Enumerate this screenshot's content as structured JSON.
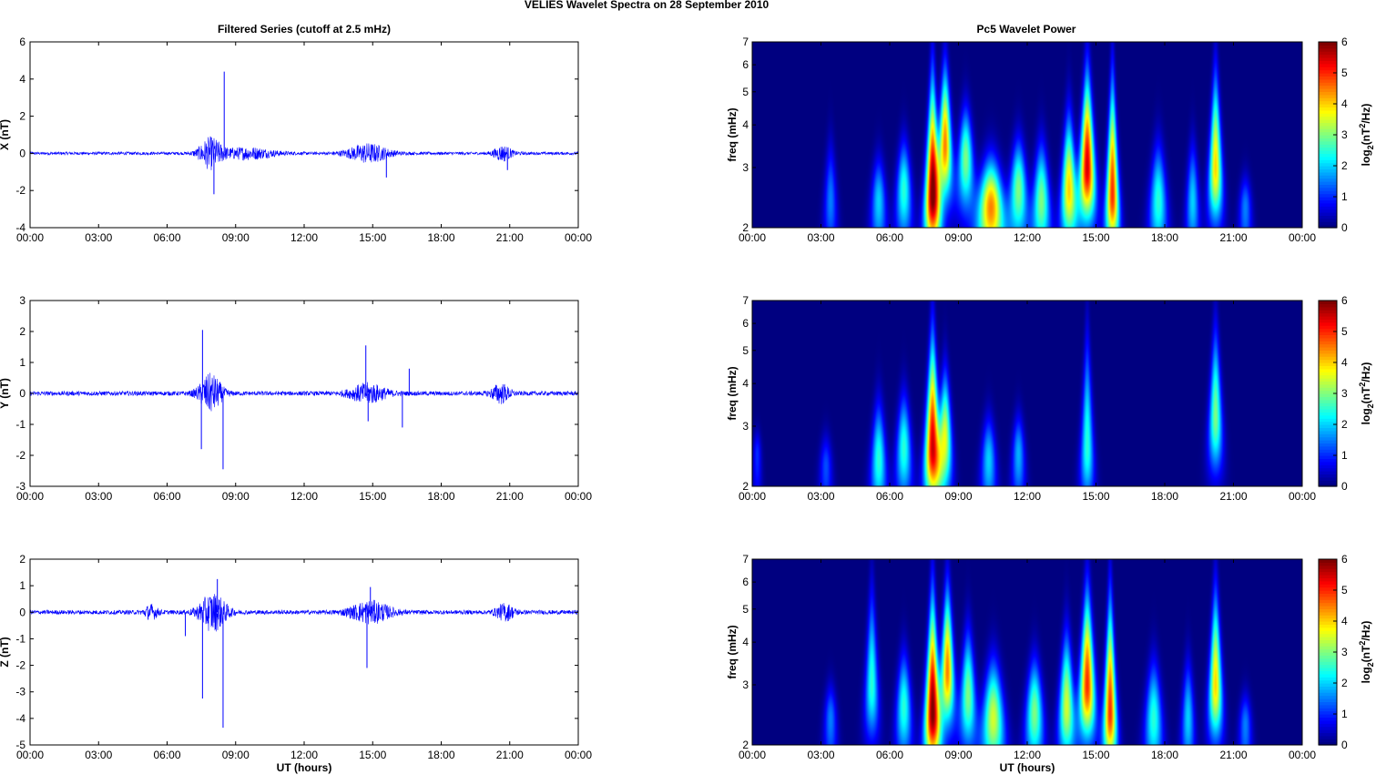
{
  "title": "VELIES Wavelet Spectra on 28 September 2010",
  "left_title": "Filtered Series (cutoff at 2.5 mHz)",
  "right_title": "Pc5 Wavelet Power",
  "xlabel": "UT (hours)",
  "freq_label": "freq (mHz)",
  "cbar_label": "log2(nT2/Hz)",
  "colors": {
    "series": "#0000ff",
    "axis": "#000000"
  },
  "chart_data": [
    {
      "type": "line",
      "title": "Filtered Series (cutoff at 2.5 mHz)",
      "ylabel": "X (nT)",
      "xlabel": "",
      "x_ticks": [
        "00:00",
        "03:00",
        "06:00",
        "09:00",
        "12:00",
        "15:00",
        "18:00",
        "21:00",
        "00:00"
      ],
      "xlim": [
        0,
        24
      ],
      "ylim": [
        -4,
        6
      ],
      "y_ticks": [
        -4,
        -2,
        0,
        2,
        4,
        6
      ],
      "baseline_amplitude": 0.08,
      "bursts": [
        {
          "center": 7.9,
          "width": 0.5,
          "amp": 0.8
        },
        {
          "center": 9.5,
          "width": 1.2,
          "amp": 0.3
        },
        {
          "center": 14.8,
          "width": 0.9,
          "amp": 0.5
        },
        {
          "center": 20.7,
          "width": 0.4,
          "amp": 0.4
        }
      ],
      "spikes": [
        [
          8.5,
          4.4
        ],
        [
          8.05,
          -2.2
        ],
        [
          15.6,
          -1.3
        ],
        [
          20.9,
          -0.9
        ]
      ]
    },
    {
      "type": "line",
      "title": "",
      "ylabel": "Y (nT)",
      "xlabel": "",
      "x_ticks": [
        "00:00",
        "03:00",
        "06:00",
        "09:00",
        "12:00",
        "15:00",
        "18:00",
        "21:00",
        "00:00"
      ],
      "xlim": [
        0,
        24
      ],
      "ylim": [
        -3,
        3
      ],
      "y_ticks": [
        -3,
        -2,
        -1,
        0,
        1,
        2,
        3
      ],
      "baseline_amplitude": 0.07,
      "bursts": [
        {
          "center": 7.9,
          "width": 0.5,
          "amp": 0.6
        },
        {
          "center": 14.8,
          "width": 0.8,
          "amp": 0.3
        },
        {
          "center": 20.6,
          "width": 0.4,
          "amp": 0.3
        }
      ],
      "spikes": [
        [
          7.55,
          2.05
        ],
        [
          8.45,
          -2.45
        ],
        [
          7.5,
          -1.8
        ],
        [
          14.7,
          1.55
        ],
        [
          16.3,
          -1.1
        ],
        [
          16.6,
          0.8
        ],
        [
          14.8,
          -0.9
        ]
      ]
    },
    {
      "type": "line",
      "title": "",
      "ylabel": "Z (nT)",
      "xlabel": "UT (hours)",
      "x_ticks": [
        "00:00",
        "03:00",
        "06:00",
        "09:00",
        "12:00",
        "15:00",
        "18:00",
        "21:00",
        "00:00"
      ],
      "xlim": [
        0,
        24
      ],
      "ylim": [
        -5,
        2
      ],
      "y_ticks": [
        -5,
        -4,
        -3,
        -2,
        -1,
        0,
        1,
        2
      ],
      "baseline_amplitude": 0.08,
      "bursts": [
        {
          "center": 8.0,
          "width": 0.6,
          "amp": 0.7
        },
        {
          "center": 5.3,
          "width": 0.3,
          "amp": 0.25
        },
        {
          "center": 14.9,
          "width": 0.9,
          "amp": 0.4
        },
        {
          "center": 20.8,
          "width": 0.4,
          "amp": 0.3
        }
      ],
      "spikes": [
        [
          8.45,
          -4.35
        ],
        [
          7.55,
          -3.25
        ],
        [
          14.75,
          -2.1
        ],
        [
          6.8,
          -0.9
        ],
        [
          8.2,
          1.25
        ],
        [
          14.9,
          0.95
        ]
      ]
    },
    {
      "type": "heatmap",
      "title": "Pc5 Wavelet Power",
      "ylabel": "freq (mHz)",
      "xlabel": "",
      "x_ticks": [
        "00:00",
        "03:00",
        "06:00",
        "09:00",
        "12:00",
        "15:00",
        "18:00",
        "21:00",
        "00:00"
      ],
      "xlim": [
        0,
        24
      ],
      "ylim": [
        2,
        7
      ],
      "y_scale": "log",
      "y_ticks": [
        2,
        3,
        4,
        5,
        6,
        7
      ],
      "colorbar": {
        "label": "log2(nT2/Hz)",
        "range": [
          0,
          6
        ],
        "ticks": [
          0,
          1,
          2,
          3,
          4,
          5,
          6
        ],
        "colormap": "jet"
      },
      "blobs": [
        {
          "t": 7.85,
          "f": 2.5,
          "power": 6,
          "width": 0.35,
          "top": 7
        },
        {
          "t": 8.4,
          "f": 3.5,
          "power": 4.5,
          "width": 0.3,
          "top": 7
        },
        {
          "t": 9.3,
          "f": 3.2,
          "power": 3,
          "width": 0.35,
          "top": 5
        },
        {
          "t": 10.4,
          "f": 2.3,
          "power": 4.5,
          "width": 0.6,
          "top": 3.5
        },
        {
          "t": 11.6,
          "f": 2.6,
          "power": 3,
          "width": 0.4,
          "top": 4
        },
        {
          "t": 12.6,
          "f": 2.4,
          "power": 3,
          "width": 0.4,
          "top": 4
        },
        {
          "t": 13.8,
          "f": 2.6,
          "power": 4,
          "width": 0.35,
          "top": 5
        },
        {
          "t": 14.6,
          "f": 3.0,
          "power": 5.5,
          "width": 0.35,
          "top": 7
        },
        {
          "t": 15.7,
          "f": 2.5,
          "power": 5,
          "width": 0.3,
          "top": 7
        },
        {
          "t": 17.7,
          "f": 2.4,
          "power": 2.5,
          "width": 0.4,
          "top": 4
        },
        {
          "t": 20.2,
          "f": 3.0,
          "power": 4,
          "width": 0.3,
          "top": 7
        },
        {
          "t": 3.4,
          "f": 2.4,
          "power": 1.5,
          "width": 0.3,
          "top": 4
        },
        {
          "t": 5.5,
          "f": 2.4,
          "power": 2,
          "width": 0.35,
          "top": 3.5
        },
        {
          "t": 6.6,
          "f": 2.6,
          "power": 2.5,
          "width": 0.35,
          "top": 4
        },
        {
          "t": 19.2,
          "f": 2.4,
          "power": 2,
          "width": 0.3,
          "top": 4
        },
        {
          "t": 21.5,
          "f": 2.3,
          "power": 1.5,
          "width": 0.3,
          "top": 3
        }
      ]
    },
    {
      "type": "heatmap",
      "title": "",
      "ylabel": "freq (mHz)",
      "xlabel": "",
      "x_ticks": [
        "00:00",
        "03:00",
        "06:00",
        "09:00",
        "12:00",
        "15:00",
        "18:00",
        "21:00",
        "00:00"
      ],
      "xlim": [
        0,
        24
      ],
      "ylim": [
        2,
        7
      ],
      "y_scale": "log",
      "y_ticks": [
        2,
        3,
        4,
        5,
        6,
        7
      ],
      "colorbar": {
        "label": "log2(nT2/Hz)",
        "range": [
          0,
          6
        ],
        "ticks": [
          0,
          1,
          2,
          3,
          4,
          5,
          6
        ],
        "colormap": "jet"
      },
      "blobs": [
        {
          "t": 7.85,
          "f": 2.6,
          "power": 5.5,
          "width": 0.35,
          "top": 7
        },
        {
          "t": 8.4,
          "f": 2.8,
          "power": 3.5,
          "width": 0.3,
          "top": 5
        },
        {
          "t": 5.5,
          "f": 2.4,
          "power": 2.5,
          "width": 0.35,
          "top": 4
        },
        {
          "t": 6.6,
          "f": 2.6,
          "power": 2.5,
          "width": 0.35,
          "top": 4.2
        },
        {
          "t": 10.3,
          "f": 2.4,
          "power": 2,
          "width": 0.35,
          "top": 3.5
        },
        {
          "t": 11.6,
          "f": 2.5,
          "power": 1.8,
          "width": 0.3,
          "top": 3.5
        },
        {
          "t": 14.6,
          "f": 2.6,
          "power": 2.5,
          "width": 0.3,
          "top": 7
        },
        {
          "t": 20.2,
          "f": 3.2,
          "power": 3,
          "width": 0.3,
          "top": 7
        },
        {
          "t": 3.2,
          "f": 2.3,
          "power": 1.2,
          "width": 0.3,
          "top": 3
        },
        {
          "t": 0.2,
          "f": 2.5,
          "power": 1,
          "width": 0.2,
          "top": 3
        }
      ]
    },
    {
      "type": "heatmap",
      "title": "",
      "ylabel": "freq (mHz)",
      "xlabel": "UT (hours)",
      "x_ticks": [
        "00:00",
        "03:00",
        "06:00",
        "09:00",
        "12:00",
        "15:00",
        "18:00",
        "21:00",
        "00:00"
      ],
      "xlim": [
        0,
        24
      ],
      "ylim": [
        2,
        7
      ],
      "y_scale": "log",
      "y_ticks": [
        2,
        3,
        4,
        5,
        6,
        7
      ],
      "colorbar": {
        "label": "log2(nT2/Hz)",
        "range": [
          0,
          6
        ],
        "ticks": [
          0,
          1,
          2,
          3,
          4,
          5,
          6
        ],
        "colormap": "jet"
      },
      "blobs": [
        {
          "t": 7.85,
          "f": 2.5,
          "power": 6,
          "width": 0.35,
          "top": 7
        },
        {
          "t": 8.5,
          "f": 3.3,
          "power": 4.5,
          "width": 0.3,
          "top": 7
        },
        {
          "t": 9.4,
          "f": 2.8,
          "power": 3,
          "width": 0.35,
          "top": 5
        },
        {
          "t": 10.5,
          "f": 2.4,
          "power": 3.5,
          "width": 0.5,
          "top": 4
        },
        {
          "t": 12.3,
          "f": 2.5,
          "power": 3,
          "width": 0.4,
          "top": 4
        },
        {
          "t": 13.7,
          "f": 2.6,
          "power": 3.5,
          "width": 0.35,
          "top": 5
        },
        {
          "t": 14.6,
          "f": 3.0,
          "power": 5,
          "width": 0.35,
          "top": 7
        },
        {
          "t": 15.6,
          "f": 2.5,
          "power": 5,
          "width": 0.3,
          "top": 7
        },
        {
          "t": 17.5,
          "f": 2.4,
          "power": 2.5,
          "width": 0.4,
          "top": 4
        },
        {
          "t": 20.2,
          "f": 3.0,
          "power": 4,
          "width": 0.3,
          "top": 7
        },
        {
          "t": 5.2,
          "f": 3.0,
          "power": 2.5,
          "width": 0.3,
          "top": 7
        },
        {
          "t": 6.6,
          "f": 2.6,
          "power": 2.5,
          "width": 0.35,
          "top": 4.2
        },
        {
          "t": 3.4,
          "f": 2.4,
          "power": 1.5,
          "width": 0.3,
          "top": 3.2
        },
        {
          "t": 19.0,
          "f": 2.4,
          "power": 2,
          "width": 0.3,
          "top": 4
        },
        {
          "t": 21.5,
          "f": 2.3,
          "power": 1.5,
          "width": 0.3,
          "top": 3
        }
      ]
    }
  ]
}
